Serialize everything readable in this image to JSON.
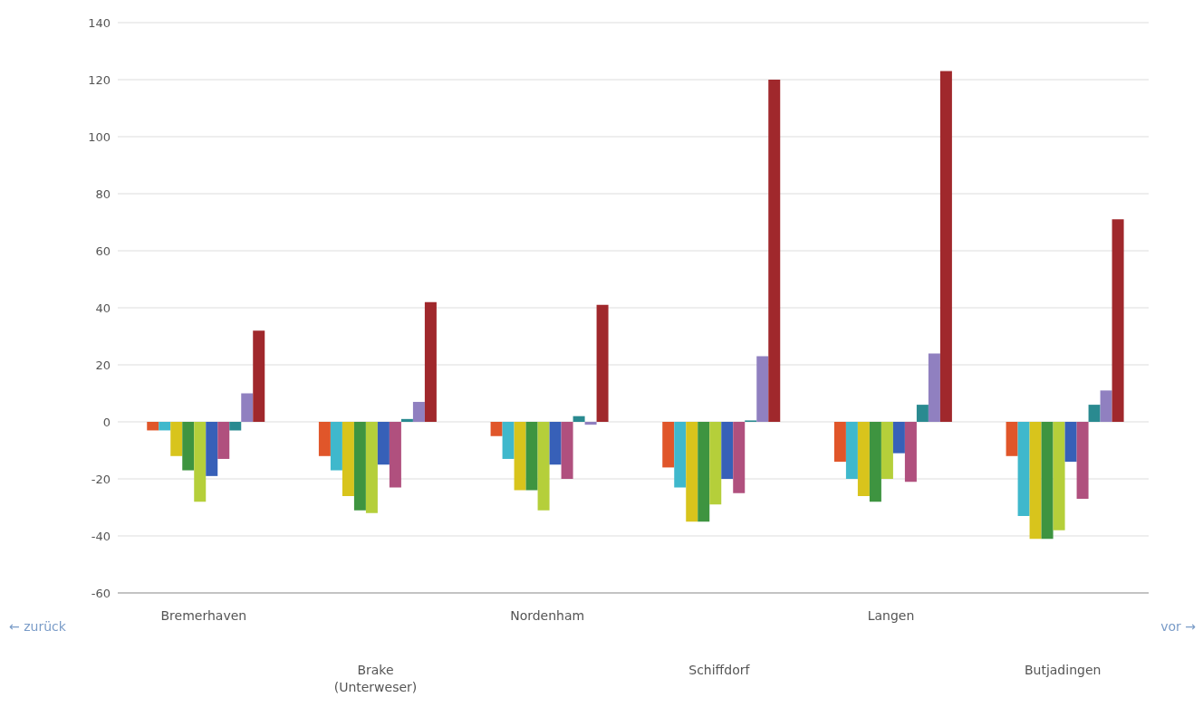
{
  "chart_data": {
    "type": "bar",
    "categories": [
      "Bremerhaven",
      "Brake (Unterweser)",
      "Nordenham",
      "Schiffdorf",
      "Langen",
      "Butjadingen"
    ],
    "series": [
      {
        "color": "#e0562a",
        "values": [
          -3,
          -12,
          -5,
          -16,
          -14,
          -12
        ]
      },
      {
        "color": "#3fb8cc",
        "values": [
          -3,
          -17,
          -13,
          -23,
          -20,
          -33
        ]
      },
      {
        "color": "#d8c41c",
        "values": [
          -12,
          -26,
          -24,
          -35,
          -26,
          -41
        ]
      },
      {
        "color": "#3e9440",
        "values": [
          -17,
          -31,
          -24,
          -35,
          -28,
          -41
        ]
      },
      {
        "color": "#b5cf3a",
        "values": [
          -28,
          -32,
          -31,
          -29,
          -20,
          -38
        ]
      },
      {
        "color": "#3760b8",
        "values": [
          -19,
          -15,
          -15,
          -20,
          -11,
          -14
        ]
      },
      {
        "color": "#b0507e",
        "values": [
          -13,
          -23,
          -20,
          -25,
          -21,
          -27
        ]
      },
      {
        "color": "#2a8a90",
        "values": [
          -3,
          1,
          2,
          0.5,
          6,
          6
        ]
      },
      {
        "color": "#9080c0",
        "values": [
          10,
          7,
          -1,
          23,
          24,
          11
        ]
      },
      {
        "color": "#a0282c",
        "values": [
          32,
          42,
          41,
          120,
          123,
          71
        ]
      }
    ],
    "ylim": [
      -60,
      140
    ],
    "yticks": [
      -60,
      -40,
      -20,
      0,
      20,
      40,
      60,
      80,
      100,
      120,
      140
    ],
    "grid": "y",
    "annotations": [
      "← zurück",
      "vor →"
    ]
  }
}
